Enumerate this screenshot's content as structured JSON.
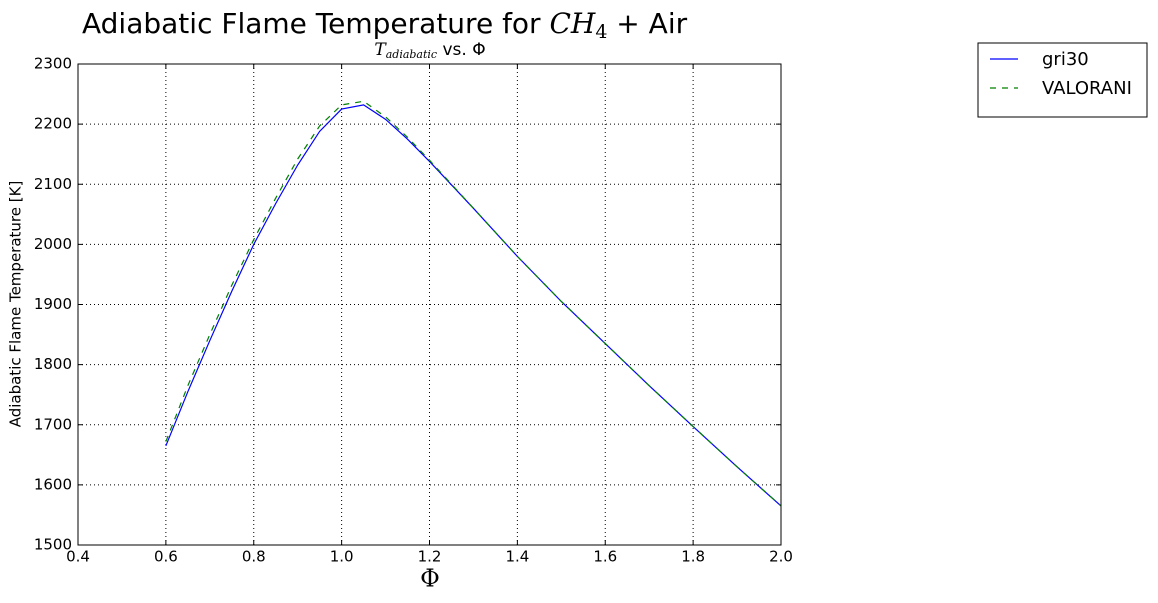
{
  "chart_data": {
    "type": "line",
    "title": {
      "text": "Adiabatic Flame Temperature for ",
      "species": "CH",
      "species_subscript": "4",
      "rest": " + Air"
    },
    "subtitle": {
      "symbol": "T",
      "symbol_subscript": "adiabatic",
      "rest": " vs. Φ"
    },
    "x_label": "Φ",
    "y_label": "Adiabatic Flame Temperature [K]",
    "x": [
      0.6,
      0.65,
      0.7,
      0.75,
      0.8,
      0.85,
      0.9,
      0.95,
      1.0,
      1.05,
      1.1,
      1.15,
      1.2,
      1.3,
      1.4,
      1.5,
      1.6,
      1.7,
      1.8,
      1.9,
      2.0
    ],
    "series": [
      {
        "name": "gri30",
        "color": "#0000ff",
        "dash": false,
        "values": [
          1665,
          1755,
          1840,
          1922,
          2000,
          2068,
          2132,
          2188,
          2225,
          2232,
          2208,
          2175,
          2138,
          2060,
          1980,
          1905,
          1835,
          1765,
          1697,
          1630,
          1565
        ]
      },
      {
        "name": "VALORANI",
        "color": "#008000",
        "dash": true,
        "values": [
          1672,
          1765,
          1850,
          1932,
          2008,
          2077,
          2142,
          2197,
          2232,
          2238,
          2212,
          2178,
          2140,
          2060,
          1980,
          1905,
          1835,
          1765,
          1697,
          1630,
          1565
        ]
      }
    ],
    "xlim": [
      0.4,
      2.0
    ],
    "ylim": [
      1500,
      2300
    ],
    "xticks": [
      0.4,
      0.6,
      0.8,
      {
        "value": 1.0,
        "label": "1.0"
      },
      1.2,
      1.4,
      1.6,
      1.8,
      {
        "value": 2.0,
        "label": "2.0"
      }
    ],
    "yticks": [
      1500,
      1600,
      1700,
      1800,
      1900,
      2000,
      2100,
      2200,
      2300
    ],
    "grid": true,
    "legend": "outside-upper-right"
  }
}
